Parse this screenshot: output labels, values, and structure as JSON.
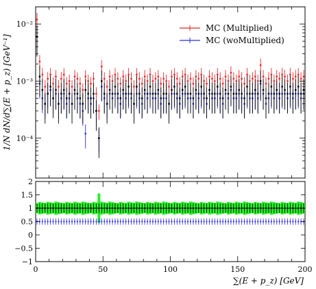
{
  "chart_data": [
    {
      "type": "scatter",
      "panel": "main",
      "xlabel": "∑(E + p_z) [GeV]",
      "ylabel": "1/N dN/d∑(E + p_z) [GeV⁻¹]",
      "yscale": "log",
      "xlim": [
        0,
        200
      ],
      "ylim": [
        2e-05,
        0.02
      ],
      "y_tick_labels": [
        "10⁻⁴",
        "10⁻³",
        "10⁻²"
      ],
      "legend": {
        "placement": "top-right",
        "entries": [
          "MC (Multiplied)",
          "MC (woMultiplied)"
        ]
      },
      "colors": {
        "multiplied": "#e8262b",
        "womultiplied": "#2b2ee8",
        "data": "#000000"
      },
      "x": [
        1,
        3,
        5,
        7,
        9,
        11,
        13,
        15,
        17,
        19,
        21,
        23,
        25,
        27,
        29,
        31,
        33,
        35,
        37,
        39,
        41,
        43,
        45,
        47,
        49,
        51,
        53,
        55,
        57,
        59,
        61,
        63,
        65,
        67,
        69,
        71,
        73,
        75,
        77,
        79,
        81,
        83,
        85,
        87,
        89,
        91,
        93,
        95,
        97,
        99,
        101,
        103,
        105,
        107,
        109,
        111,
        113,
        115,
        117,
        119,
        121,
        123,
        125,
        127,
        129,
        131,
        133,
        135,
        137,
        139,
        141,
        143,
        145,
        147,
        149,
        151,
        153,
        155,
        157,
        159,
        161,
        163,
        165,
        167,
        169,
        171,
        173,
        175,
        177,
        179,
        181,
        183,
        185,
        187,
        189,
        191,
        193,
        195,
        197,
        199
      ],
      "series": [
        {
          "name": "MC (Multiplied)",
          "key": "multiplied",
          "values": [
            0.012,
            0.0022,
            0.0013,
            0.0008,
            0.0011,
            0.0013,
            0.0009,
            0.0012,
            0.0008,
            0.0011,
            0.0013,
            0.0009,
            0.001,
            0.0008,
            0.0012,
            0.0011,
            0.0009,
            0.0007,
            0.0012,
            0.001,
            0.0009,
            0.0011,
            0.0006,
            0.0003,
            0.0018,
            0.0011,
            0.0008,
            0.0012,
            0.001,
            0.0013,
            0.0011,
            0.0009,
            0.0012,
            0.001,
            0.0013,
            0.0011,
            0.0008,
            0.0013,
            0.0011,
            0.0009,
            0.0012,
            0.001,
            0.0013,
            0.001,
            0.0011,
            0.0012,
            0.0009,
            0.0011,
            0.001,
            0.0008,
            0.0012,
            0.0013,
            0.0011,
            0.0009,
            0.0012,
            0.0013,
            0.001,
            0.0011,
            0.0009,
            0.0012,
            0.0011,
            0.0013,
            0.001,
            0.0009,
            0.0012,
            0.0011,
            0.001,
            0.0013,
            0.0011,
            0.0009,
            0.0012,
            0.001,
            0.0014,
            0.0011,
            0.001,
            0.0012,
            0.0011,
            0.0009,
            0.0013,
            0.001,
            0.0011,
            0.0012,
            0.001,
            0.0019,
            0.0012,
            0.0009,
            0.0011,
            0.0013,
            0.001,
            0.0012,
            0.0011,
            0.0013,
            0.0012,
            0.001,
            0.0013,
            0.0011,
            0.0012,
            0.0013,
            0.0011,
            0.0012
          ]
        },
        {
          "name": "MC (woMultiplied)",
          "key": "womultiplied",
          "values": [
            0.006,
            0.0009,
            0.0005,
            0.0004,
            0.0006,
            0.0007,
            0.0005,
            0.0006,
            0.0004,
            0.0005,
            0.0006,
            0.0004,
            0.0005,
            0.0004,
            0.0006,
            0.0005,
            0.0004,
            0.0003,
            0.00012,
            0.0005,
            0.0004,
            0.0005,
            0.0003,
            0.0001,
            0.0008,
            0.0005,
            0.0004,
            0.0006,
            0.0005,
            0.0006,
            0.0005,
            0.0004,
            0.0006,
            0.0005,
            0.0006,
            0.0005,
            0.0004,
            0.0006,
            0.0005,
            0.0004,
            0.0006,
            0.0005,
            0.0006,
            0.0005,
            0.0005,
            0.0006,
            0.0004,
            0.0005,
            0.0005,
            0.0004,
            0.0006,
            0.0006,
            0.0005,
            0.0004,
            0.0006,
            0.0006,
            0.0005,
            0.0005,
            0.0004,
            0.0006,
            0.0005,
            0.0006,
            0.0005,
            0.0004,
            0.0006,
            0.0005,
            0.0005,
            0.0006,
            0.0005,
            0.0004,
            0.0006,
            0.0005,
            0.0007,
            0.0005,
            0.0005,
            0.0006,
            0.0005,
            0.0004,
            0.0006,
            0.0005,
            0.0005,
            0.0006,
            0.0005,
            0.0009,
            0.0006,
            0.0004,
            0.0005,
            0.0006,
            0.0005,
            0.0006,
            0.0005,
            0.0006,
            0.0006,
            0.0005,
            0.0006,
            0.0005,
            0.0006,
            0.0006,
            0.0005,
            0.0006
          ]
        },
        {
          "name": "",
          "key": "data",
          "values": [
            0.006,
            0.0012,
            0.0007,
            0.0004,
            0.0006,
            0.0008,
            0.0005,
            0.0007,
            0.0004,
            0.0006,
            0.0007,
            0.0005,
            0.0006,
            0.0004,
            0.0007,
            0.0006,
            0.0005,
            0.0004,
            0.0007,
            0.0006,
            0.0005,
            0.0006,
            0.0003,
            0.0001,
            0.001,
            0.0006,
            0.0004,
            0.0007,
            0.0006,
            0.0008,
            0.0006,
            0.0005,
            0.0007,
            0.0006,
            0.0008,
            0.0006,
            0.0004,
            0.0008,
            0.0006,
            0.0005,
            0.0007,
            0.0006,
            0.0008,
            0.0006,
            0.0006,
            0.0007,
            0.0005,
            0.0006,
            0.0006,
            0.0004,
            0.0007,
            0.0008,
            0.0006,
            0.0005,
            0.0007,
            0.0008,
            0.0006,
            0.0006,
            0.0005,
            0.0007,
            0.0006,
            0.0008,
            0.0006,
            0.0005,
            0.0007,
            0.0006,
            0.0006,
            0.0008,
            0.0006,
            0.0005,
            0.0007,
            0.0006,
            0.0008,
            0.0006,
            0.0006,
            0.0007,
            0.0006,
            0.0005,
            0.0008,
            0.0006,
            0.0006,
            0.0007,
            0.0006,
            0.001,
            0.0007,
            0.0005,
            0.0006,
            0.0008,
            0.0006,
            0.0007,
            0.0006,
            0.0008,
            0.0007,
            0.0006,
            0.0008,
            0.0006,
            0.0007,
            0.0008,
            0.0006,
            0.0007
          ]
        }
      ]
    },
    {
      "type": "scatter",
      "panel": "ratio",
      "xlim": [
        0,
        200
      ],
      "ylim": [
        -1,
        2
      ],
      "y_ticks": [
        -1,
        -0.5,
        0,
        0.5,
        1,
        1.5,
        2
      ],
      "y_tick_labels": [
        "−1",
        "−0.5",
        "0",
        "0.5",
        "1",
        "1.5",
        "2"
      ],
      "x_ticks": [
        0,
        50,
        100,
        150,
        200
      ],
      "x_tick_labels": [
        "0",
        "50",
        "100",
        "150",
        "200"
      ],
      "band": {
        "color": "#22ee22",
        "center": 1.0,
        "halfwidth": 0.22,
        "spike": {
          "x": 47,
          "halfwidth": 0.55
        }
      },
      "series": [
        {
          "name": "",
          "key": "ratio_multiplied",
          "value": 1.0
        },
        {
          "name": "",
          "key": "ratio_womultiplied",
          "value": 0.5
        }
      ]
    }
  ]
}
